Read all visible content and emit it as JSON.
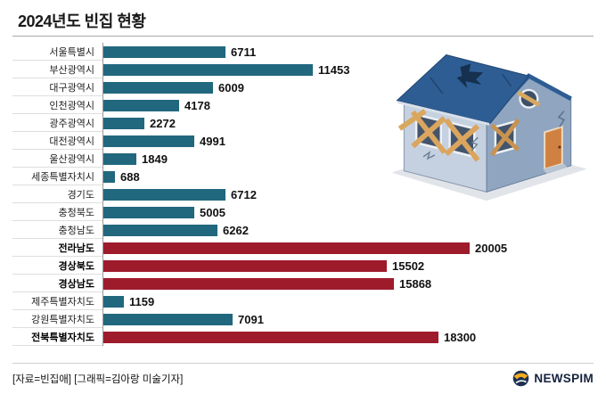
{
  "header": {
    "title": "2024년도 빈집 현황"
  },
  "footer": {
    "source": "[자료=빈집애] [그래픽=김아랑 미술기자]",
    "logo_text": "NEWSPIM"
  },
  "colors": {
    "bar_default": "#21687e",
    "bar_highlight": "#9e1b2c",
    "value_text": "#111111"
  },
  "chart_data": {
    "type": "bar",
    "orientation": "horizontal",
    "title": "2024년도 빈집 현황",
    "categories": [
      "서울특별시",
      "부산광역시",
      "대구광역시",
      "인천광역시",
      "광주광역시",
      "대전광역시",
      "울산광역시",
      "세종특별자치시",
      "경기도",
      "충청북도",
      "충청남도",
      "전라남도",
      "경상북도",
      "경상남도",
      "제주특별자치도",
      "강원특별자치도",
      "전북특별자치도"
    ],
    "values": [
      6711,
      11453,
      6009,
      4178,
      2272,
      4991,
      1849,
      688,
      6712,
      5005,
      6262,
      20005,
      15502,
      15868,
      1159,
      7091,
      18300
    ],
    "highlighted": [
      "전라남도",
      "경상북도",
      "경상남도",
      "전북특별자치도"
    ],
    "axis_max": 20005,
    "xlim": [
      0,
      20005
    ],
    "grid": false,
    "legend": "none",
    "value_labels": "end-of-bar"
  },
  "illustration": {
    "name": "damaged-vacant-house"
  }
}
